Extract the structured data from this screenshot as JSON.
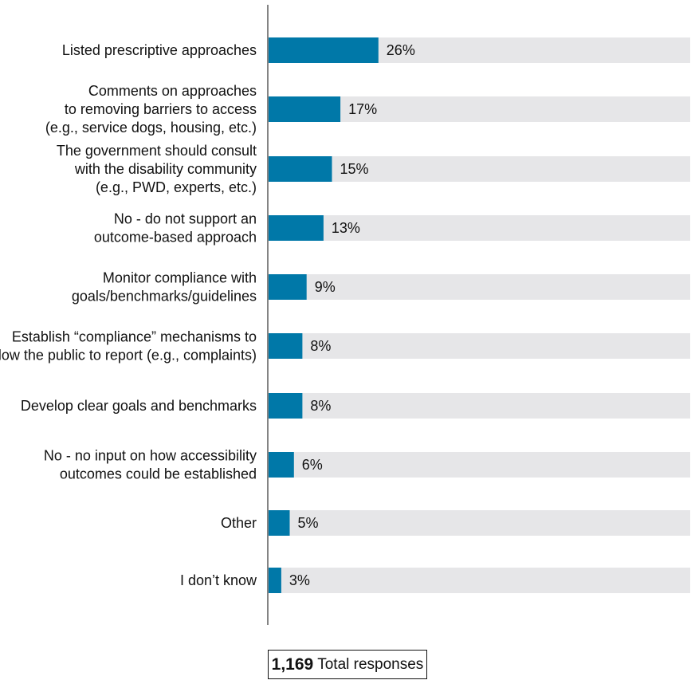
{
  "chart_data": {
    "type": "bar",
    "orientation": "horizontal",
    "title": "",
    "xlabel": "",
    "ylabel": "",
    "xlim": [
      0,
      100
    ],
    "value_suffix": "%",
    "grid": false,
    "bar_color": "#0078a8",
    "track_color": "#e6e6e8",
    "categories": [
      [
        "Listed prescriptive approaches"
      ],
      [
        "Comments on approaches",
        "to removing barriers to access",
        "(e.g., service dogs, housing, etc.)"
      ],
      [
        "The government should consult",
        "with the disability community",
        "(e.g., PWD, experts, etc.)"
      ],
      [
        "No - do not support an",
        "outcome-based approach"
      ],
      [
        "Monitor compliance with",
        "goals/benchmarks/guidelines"
      ],
      [
        "Establish “compliance” mechanisms to",
        "allow the public to report (e.g., complaints)"
      ],
      [
        "Develop clear goals and benchmarks"
      ],
      [
        "No - no input on how accessibility",
        "outcomes could be established"
      ],
      [
        "Other"
      ],
      [
        "I don’t know"
      ]
    ],
    "values": [
      26,
      17,
      15,
      13,
      9,
      8,
      8,
      6,
      5,
      3
    ]
  },
  "footer": {
    "total_number": "1,169",
    "total_label": "Total responses"
  }
}
